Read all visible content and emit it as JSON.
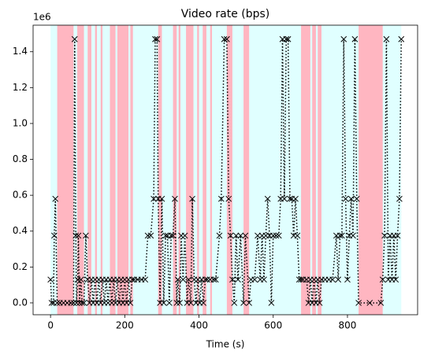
{
  "chart_data": {
    "type": "line",
    "title": "Video rate (bps)",
    "xlabel": "Time (s)",
    "y_offset_label": "1e6",
    "color": "#000000",
    "marker": "x",
    "xlim": [
      -47,
      989
    ],
    "ylim": [
      -66000,
      1548000
    ],
    "xticks": [
      0,
      200,
      400,
      600,
      800
    ],
    "yticks": [
      {
        "value": 0,
        "label": "0.0"
      },
      {
        "value": 200000,
        "label": "0.2"
      },
      {
        "value": 400000,
        "label": "0.4"
      },
      {
        "value": 600000,
        "label": "0.6"
      },
      {
        "value": 800000,
        "label": "0.8"
      },
      {
        "value": 1000000,
        "label": "1.0"
      },
      {
        "value": 1200000,
        "label": "1.2"
      },
      {
        "value": 1400000,
        "label": "1.4"
      }
    ],
    "spans": [
      {
        "color": "#e0ffff",
        "ranges": [
          [
            0,
            945
          ]
        ]
      },
      {
        "color": "#ffb6c1",
        "ranges": [
          [
            18,
            62
          ],
          [
            72,
            90
          ],
          [
            100,
            110
          ],
          [
            120,
            125
          ],
          [
            135,
            140
          ],
          [
            160,
            175
          ],
          [
            180,
            210
          ],
          [
            215,
            222
          ],
          [
            290,
            300
          ],
          [
            330,
            340
          ],
          [
            345,
            350
          ],
          [
            365,
            385
          ],
          [
            395,
            400
          ],
          [
            410,
            420
          ],
          [
            430,
            435
          ],
          [
            475,
            490
          ],
          [
            520,
            535
          ],
          [
            675,
            700
          ],
          [
            705,
            715
          ],
          [
            720,
            730
          ],
          [
            830,
            895
          ]
        ]
      }
    ],
    "x": [
      0,
      3,
      8,
      10,
      13,
      18,
      25,
      35,
      45,
      55,
      62,
      65,
      68,
      70,
      73,
      75,
      78,
      82,
      85,
      90,
      95,
      100,
      105,
      110,
      115,
      120,
      125,
      130,
      135,
      140,
      145,
      150,
      155,
      160,
      165,
      170,
      175,
      180,
      185,
      190,
      195,
      200,
      205,
      210,
      215,
      220,
      225,
      235,
      245,
      255,
      262,
      270,
      278,
      282,
      287,
      290,
      295,
      300,
      305,
      310,
      315,
      320,
      325,
      330,
      335,
      340,
      343,
      348,
      352,
      357,
      362,
      368,
      372,
      378,
      382,
      387,
      392,
      397,
      402,
      407,
      412,
      417,
      422,
      430,
      440,
      445,
      455,
      460,
      468,
      475,
      480,
      485,
      490,
      495,
      500,
      505,
      512,
      520,
      525,
      535,
      540,
      550,
      558,
      565,
      570,
      575,
      580,
      585,
      590,
      595,
      600,
      608,
      615,
      620,
      625,
      630,
      635,
      640,
      645,
      650,
      655,
      660,
      665,
      670,
      675,
      680,
      690,
      695,
      700,
      705,
      710,
      715,
      720,
      725,
      730,
      740,
      750,
      760,
      770,
      775,
      780,
      785,
      790,
      795,
      800,
      805,
      810,
      815,
      820,
      825,
      830,
      860,
      890,
      895,
      900,
      905,
      910,
      915,
      920,
      925,
      930,
      935,
      940,
      945
    ],
    "values": [
      130000,
      0,
      0,
      375000,
      580000,
      0,
      0,
      0,
      0,
      0,
      0,
      1470000,
      375000,
      0,
      130000,
      375000,
      0,
      130000,
      0,
      0,
      375000,
      130000,
      0,
      130000,
      0,
      130000,
      0,
      130000,
      0,
      130000,
      0,
      130000,
      0,
      130000,
      0,
      130000,
      0,
      130000,
      0,
      130000,
      0,
      130000,
      0,
      130000,
      0,
      130000,
      130000,
      130000,
      130000,
      130000,
      375000,
      375000,
      580000,
      1470000,
      1470000,
      580000,
      0,
      580000,
      0,
      375000,
      375000,
      0,
      375000,
      375000,
      580000,
      0,
      130000,
      0,
      375000,
      130000,
      375000,
      0,
      130000,
      0,
      580000,
      130000,
      0,
      130000,
      0,
      130000,
      0,
      130000,
      130000,
      130000,
      130000,
      130000,
      375000,
      580000,
      1470000,
      1470000,
      580000,
      375000,
      130000,
      0,
      375000,
      130000,
      375000,
      0,
      375000,
      0,
      130000,
      130000,
      375000,
      130000,
      375000,
      130000,
      375000,
      580000,
      375000,
      0,
      375000,
      375000,
      375000,
      580000,
      1470000,
      580000,
      1470000,
      1470000,
      580000,
      580000,
      375000,
      580000,
      375000,
      130000,
      130000,
      130000,
      130000,
      0,
      130000,
      0,
      130000,
      0,
      130000,
      0,
      130000,
      130000,
      130000,
      130000,
      375000,
      130000,
      375000,
      375000,
      1470000,
      580000,
      130000,
      375000,
      580000,
      375000,
      1470000,
      580000,
      0,
      0,
      0,
      130000,
      375000,
      1470000,
      130000,
      375000,
      130000,
      375000,
      130000,
      375000,
      580000,
      1470000
    ]
  }
}
